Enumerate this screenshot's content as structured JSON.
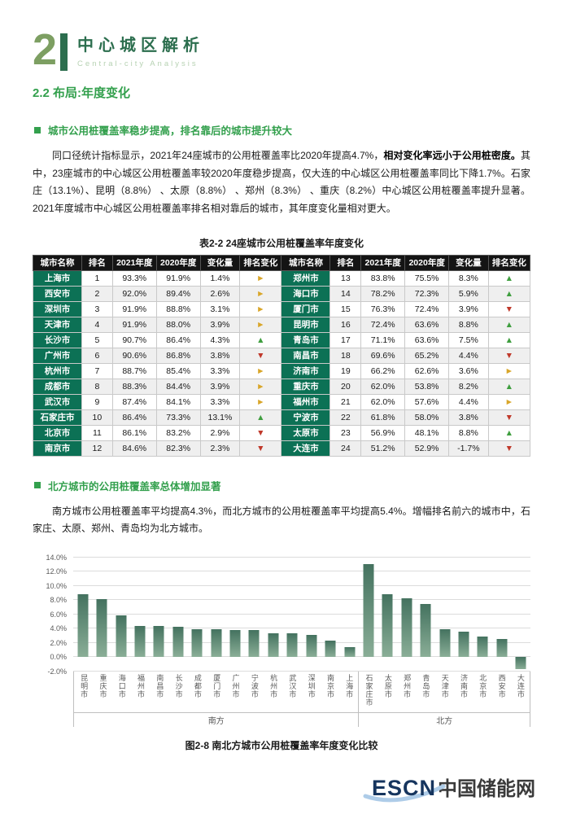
{
  "theme": {
    "num_green": "#7d9f62",
    "dark_green": "#2c6e4e",
    "pale_green": "#b7d2b3",
    "accent_green": "#33a04d",
    "header_bg": "#141414",
    "city_bg": "#0c7155",
    "up": "#3f9e3f",
    "down": "#c0392b",
    "flat": "#d9a62a",
    "bar_top": "#44725f",
    "bar_bottom": "#8aae97",
    "logo_navy": "#16355e"
  },
  "page": {
    "chapter_number": "2",
    "chapter_title": "中心城区解析",
    "chapter_subtitle": "Central-city Analysis",
    "section_title": "2.2 布局:年度变化"
  },
  "section1": {
    "heading": "城市公用桩覆盖率稳步提高，排名靠后的城市提升较大",
    "para_normal1": "同口径统计指标显示，2021年24座城市的公用桩覆盖率比2020年提高4.7%，",
    "para_bold": "相对变化率远小于公用桩密度。",
    "para_normal2": "其中，23座城市的中心城区公用桩覆盖率较2020年度稳步提高，仅大连的中心城区公用桩覆盖率同比下降1.7%。石家庄（13.1%）、昆明（8.8%） 、太原（8.8%） 、郑州（8.3%） 、重庆（8.2%）中心城区公用桩覆盖率提升显著。2021年度城市中心城区公用桩覆盖率排名相对靠后的城市，其年度变化量相对更大。"
  },
  "table": {
    "title": "表2-2 24座城市公用桩覆盖率年度变化",
    "headers": [
      "城市名称",
      "排名",
      "2021年度",
      "2020年度",
      "变化量",
      "排名变化"
    ],
    "rows": [
      {
        "city": "上海市",
        "rank": "1",
        "y2021": "93.3%",
        "y2020": "91.9%",
        "change": "1.4%",
        "trend": "flat"
      },
      {
        "city": "西安市",
        "rank": "2",
        "y2021": "92.0%",
        "y2020": "89.4%",
        "change": "2.6%",
        "trend": "flat"
      },
      {
        "city": "深圳市",
        "rank": "3",
        "y2021": "91.9%",
        "y2020": "88.8%",
        "change": "3.1%",
        "trend": "flat"
      },
      {
        "city": "天津市",
        "rank": "4",
        "y2021": "91.9%",
        "y2020": "88.0%",
        "change": "3.9%",
        "trend": "flat"
      },
      {
        "city": "长沙市",
        "rank": "5",
        "y2021": "90.7%",
        "y2020": "86.4%",
        "change": "4.3%",
        "trend": "up"
      },
      {
        "city": "广州市",
        "rank": "6",
        "y2021": "90.6%",
        "y2020": "86.8%",
        "change": "3.8%",
        "trend": "down"
      },
      {
        "city": "杭州市",
        "rank": "7",
        "y2021": "88.7%",
        "y2020": "85.4%",
        "change": "3.3%",
        "trend": "flat"
      },
      {
        "city": "成都市",
        "rank": "8",
        "y2021": "88.3%",
        "y2020": "84.4%",
        "change": "3.9%",
        "trend": "flat"
      },
      {
        "city": "武汉市",
        "rank": "9",
        "y2021": "87.4%",
        "y2020": "84.1%",
        "change": "3.3%",
        "trend": "flat"
      },
      {
        "city": "石家庄市",
        "rank": "10",
        "y2021": "86.4%",
        "y2020": "73.3%",
        "change": "13.1%",
        "trend": "up"
      },
      {
        "city": "北京市",
        "rank": "11",
        "y2021": "86.1%",
        "y2020": "83.2%",
        "change": "2.9%",
        "trend": "down"
      },
      {
        "city": "南京市",
        "rank": "12",
        "y2021": "84.6%",
        "y2020": "82.3%",
        "change": "2.3%",
        "trend": "down"
      },
      {
        "city": "郑州市",
        "rank": "13",
        "y2021": "83.8%",
        "y2020": "75.5%",
        "change": "8.3%",
        "trend": "up"
      },
      {
        "city": "海口市",
        "rank": "14",
        "y2021": "78.2%",
        "y2020": "72.3%",
        "change": "5.9%",
        "trend": "up"
      },
      {
        "city": "厦门市",
        "rank": "15",
        "y2021": "76.3%",
        "y2020": "72.4%",
        "change": "3.9%",
        "trend": "down"
      },
      {
        "city": "昆明市",
        "rank": "16",
        "y2021": "72.4%",
        "y2020": "63.6%",
        "change": "8.8%",
        "trend": "up"
      },
      {
        "city": "青岛市",
        "rank": "17",
        "y2021": "71.1%",
        "y2020": "63.6%",
        "change": "7.5%",
        "trend": "up"
      },
      {
        "city": "南昌市",
        "rank": "18",
        "y2021": "69.6%",
        "y2020": "65.2%",
        "change": "4.4%",
        "trend": "down"
      },
      {
        "city": "济南市",
        "rank": "19",
        "y2021": "66.2%",
        "y2020": "62.6%",
        "change": "3.6%",
        "trend": "flat"
      },
      {
        "city": "重庆市",
        "rank": "20",
        "y2021": "62.0%",
        "y2020": "53.8%",
        "change": "8.2%",
        "trend": "up"
      },
      {
        "city": "福州市",
        "rank": "21",
        "y2021": "62.0%",
        "y2020": "57.6%",
        "change": "4.4%",
        "trend": "flat"
      },
      {
        "city": "宁波市",
        "rank": "22",
        "y2021": "61.8%",
        "y2020": "58.0%",
        "change": "3.8%",
        "trend": "down"
      },
      {
        "city": "太原市",
        "rank": "23",
        "y2021": "56.9%",
        "y2020": "48.1%",
        "change": "8.8%",
        "trend": "up"
      },
      {
        "city": "大连市",
        "rank": "24",
        "y2021": "51.2%",
        "y2020": "52.9%",
        "change": "-1.7%",
        "trend": "down"
      }
    ]
  },
  "section2": {
    "heading": "北方城市的公用桩覆盖率总体增加显著",
    "para": "南方城市公用桩覆盖率平均提高4.3%，而北方城市的公用桩覆盖率平均提高5.4%。增幅排名前六的城市中，石家庄、太原、郑州、青岛均为北方城市。"
  },
  "chart_data": {
    "type": "bar",
    "title": "",
    "caption": "图2-8 南北方城市公用桩覆盖率年度变化比较",
    "xlabel": "",
    "ylabel": "",
    "ylim": [
      -2,
      14
    ],
    "grid": true,
    "yticks": [
      "14.0%",
      "12.0%",
      "10.0%",
      "8.0%",
      "6.0%",
      "4.0%",
      "2.0%",
      "0.0%",
      "-2.0%"
    ],
    "groups": [
      {
        "label": "南方",
        "categories": [
          "昆明市",
          "重庆市",
          "海口市",
          "福州市",
          "南昌市",
          "长沙市",
          "成都市",
          "厦门市",
          "广州市",
          "宁波市",
          "杭州市",
          "武汉市",
          "深圳市",
          "南京市",
          "上海市"
        ],
        "values": [
          8.8,
          8.2,
          5.9,
          4.4,
          4.4,
          4.3,
          3.9,
          3.9,
          3.8,
          3.8,
          3.3,
          3.3,
          3.1,
          2.3,
          1.4
        ]
      },
      {
        "label": "北方",
        "categories": [
          "石家庄市",
          "太原市",
          "郑州市",
          "青岛市",
          "天津市",
          "济南市",
          "北京市",
          "西安市",
          "大连市"
        ],
        "values": [
          13.1,
          8.8,
          8.3,
          7.5,
          3.9,
          3.6,
          2.9,
          2.6,
          -1.7
        ]
      }
    ]
  },
  "footer": {
    "logo_en": "ESCN",
    "logo_cn": "中国储能网"
  }
}
